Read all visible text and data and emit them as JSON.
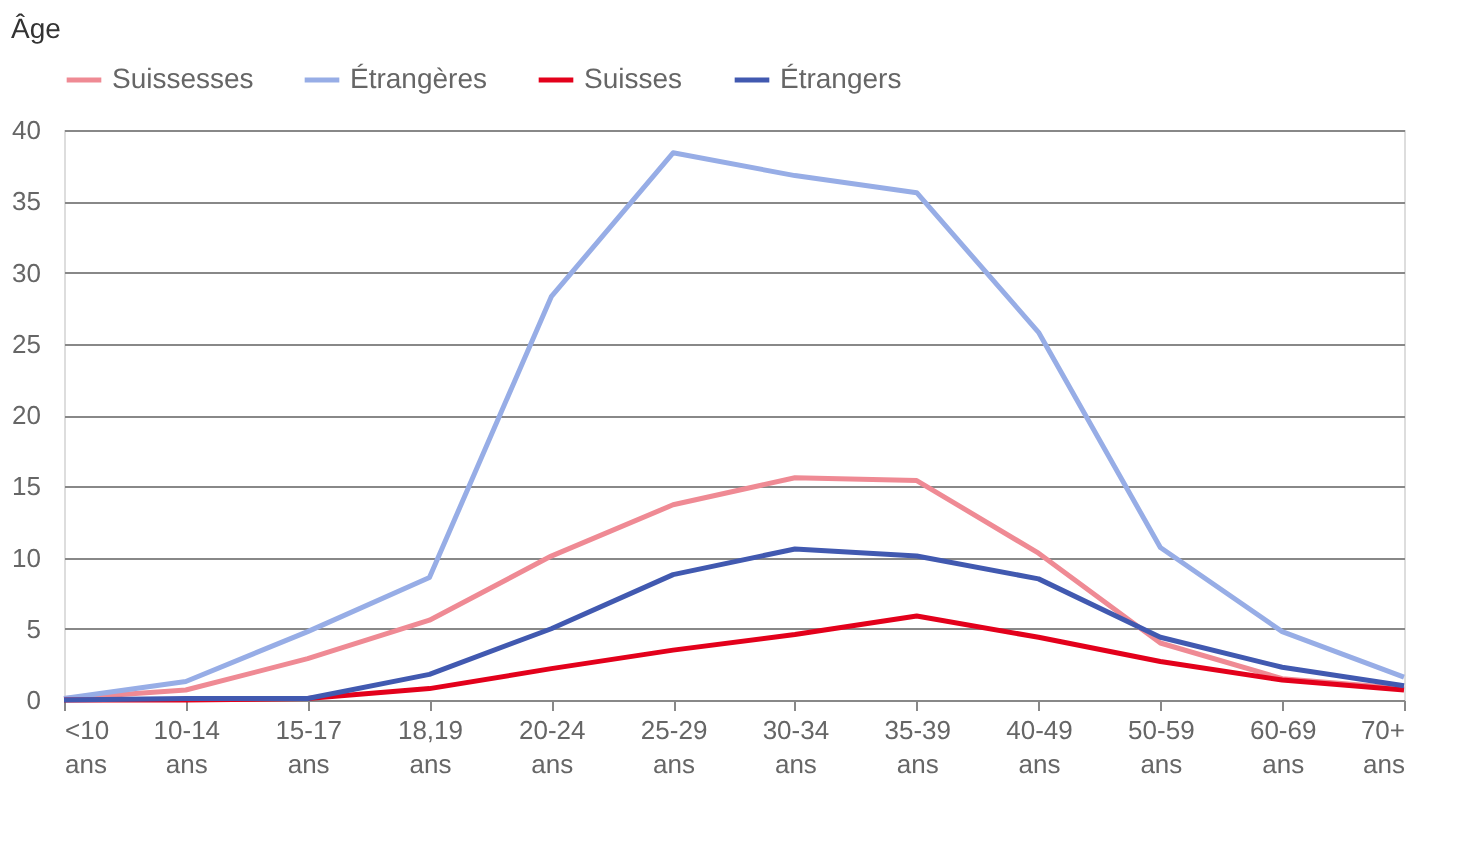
{
  "chart_data": {
    "type": "line",
    "title": "Âge",
    "categories": [
      "<10 ans",
      "10-14 ans",
      "15-17 ans",
      "18,19 ans",
      "20-24 ans",
      "25-29 ans",
      "30-34 ans",
      "35-39 ans",
      "40-49 ans",
      "50-59 ans",
      "60-69 ans",
      "70+ ans"
    ],
    "series": [
      {
        "name": "Suissesses",
        "color": "#ef8a94",
        "values": [
          0.1,
          0.7,
          2.9,
          5.6,
          10.1,
          13.7,
          15.6,
          15.4,
          10.3,
          4.0,
          1.5,
          0.8
        ]
      },
      {
        "name": "Étrangères",
        "color": "#97ade6",
        "values": [
          0.1,
          1.3,
          4.8,
          8.6,
          28.3,
          38.4,
          36.8,
          35.6,
          25.8,
          10.7,
          4.8,
          1.6
        ]
      },
      {
        "name": "Suisses",
        "color": "#e3001b",
        "values": [
          0,
          0,
          0.1,
          0.8,
          2.2,
          3.5,
          4.6,
          5.9,
          4.4,
          2.7,
          1.4,
          0.7
        ]
      },
      {
        "name": "Étrangers",
        "color": "#4159b0",
        "values": [
          0,
          0.1,
          0.1,
          1.8,
          5.0,
          8.8,
          10.6,
          10.1,
          8.5,
          4.4,
          2.3,
          1.0
        ]
      }
    ],
    "ylim": [
      0,
      40
    ],
    "yticks": [
      0,
      5,
      10,
      15,
      20,
      25,
      30,
      35,
      40
    ],
    "grid": "y",
    "legend": "top left",
    "line_style": "solid",
    "marker": "none"
  }
}
